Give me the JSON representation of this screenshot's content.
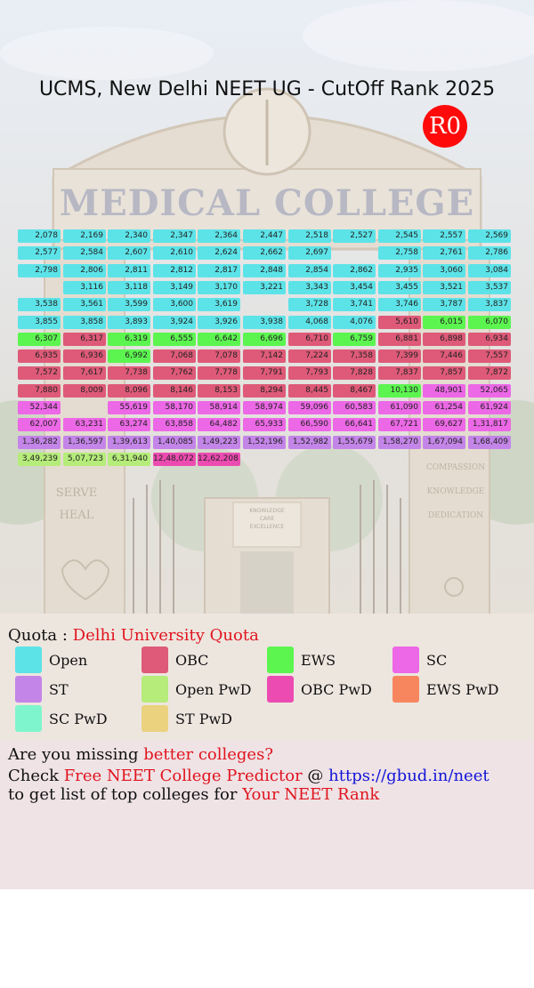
{
  "title": "UCMS, New Delhi NEET UG - CutOff Rank 2025",
  "round_badge": "R0",
  "background": {
    "sign_text": "MEDICAL COLLEGE",
    "pillar_left": [
      "SERVE",
      "HEAL"
    ],
    "pillar_right": [
      "COMPASSION",
      "KNOWLEDGE",
      "DEDICATION"
    ],
    "center_sign": [
      "KNOWLEDGE",
      "CARE",
      "EXCELLENCE"
    ]
  },
  "colors": {
    "Open": "#5ce3e8",
    "OBC": "#de5a78",
    "EWS": "#5cf550",
    "SC": "#ec68e6",
    "ST": "#c485e8",
    "Open PwD": "#b5ec7a",
    "OBC PwD": "#ec4cb1",
    "EWS PwD": "#f7865e",
    "SC PwD": "#7ff5cd",
    "ST PwD": "#ead27f"
  },
  "grid": [
    [
      [
        "2,078",
        "Open"
      ],
      [
        "2,169",
        "Open"
      ],
      [
        "2,340",
        "Open"
      ],
      [
        "2,347",
        "Open"
      ],
      [
        "2,364",
        "Open"
      ],
      [
        "2,447",
        "Open"
      ],
      [
        "2,518",
        "Open"
      ],
      [
        "2,527",
        "Open"
      ],
      [
        "2,545",
        "Open"
      ],
      [
        "2,557",
        "Open"
      ],
      [
        "2,569",
        "Open"
      ]
    ],
    [
      [
        "2,577",
        "Open"
      ],
      [
        "2,584",
        "Open"
      ],
      [
        "2,607",
        "Open"
      ],
      [
        "2,610",
        "Open"
      ],
      [
        "2,624",
        "Open"
      ],
      [
        "2,662",
        "Open"
      ],
      [
        "2,697",
        "Open"
      ],
      null,
      [
        "2,758",
        "Open"
      ],
      [
        "2,761",
        "Open"
      ],
      [
        "2,786",
        "Open"
      ]
    ],
    [
      [
        "2,798",
        "Open"
      ],
      [
        "2,806",
        "Open"
      ],
      [
        "2,811",
        "Open"
      ],
      [
        "2,812",
        "Open"
      ],
      [
        "2,817",
        "Open"
      ],
      [
        "2,848",
        "Open"
      ],
      [
        "2,854",
        "Open"
      ],
      [
        "2,862",
        "Open"
      ],
      [
        "2,935",
        "Open"
      ],
      [
        "3,060",
        "Open"
      ],
      [
        "3,084",
        "Open"
      ]
    ],
    [
      null,
      [
        "3,116",
        "Open"
      ],
      [
        "3,118",
        "Open"
      ],
      [
        "3,149",
        "Open"
      ],
      [
        "3,170",
        "Open"
      ],
      [
        "3,221",
        "Open"
      ],
      [
        "3,343",
        "Open"
      ],
      [
        "3,454",
        "Open"
      ],
      [
        "3,455",
        "Open"
      ],
      [
        "3,521",
        "Open"
      ],
      [
        "3,537",
        "Open"
      ]
    ],
    [
      [
        "3,538",
        "Open"
      ],
      [
        "3,561",
        "Open"
      ],
      [
        "3,599",
        "Open"
      ],
      [
        "3,600",
        "Open"
      ],
      [
        "3,619",
        "Open"
      ],
      null,
      [
        "3,728",
        "Open"
      ],
      [
        "3,741",
        "Open"
      ],
      [
        "3,746",
        "Open"
      ],
      [
        "3,787",
        "Open"
      ],
      [
        "3,837",
        "Open"
      ]
    ],
    [
      [
        "3,855",
        "Open"
      ],
      [
        "3,858",
        "Open"
      ],
      [
        "3,893",
        "Open"
      ],
      [
        "3,924",
        "Open"
      ],
      [
        "3,926",
        "Open"
      ],
      [
        "3,938",
        "Open"
      ],
      [
        "4,068",
        "Open"
      ],
      [
        "4,076",
        "Open"
      ],
      [
        "5,610",
        "OBC"
      ],
      [
        "6,015",
        "EWS"
      ],
      [
        "6,070",
        "EWS"
      ]
    ],
    [
      [
        "6,307",
        "EWS"
      ],
      [
        "6,317",
        "OBC"
      ],
      [
        "6,319",
        "EWS"
      ],
      [
        "6,555",
        "EWS"
      ],
      [
        "6,642",
        "EWS"
      ],
      [
        "6,696",
        "EWS"
      ],
      [
        "6,710",
        "OBC"
      ],
      [
        "6,759",
        "EWS"
      ],
      [
        "6,881",
        "OBC"
      ],
      [
        "6,898",
        "OBC"
      ],
      [
        "6,934",
        "OBC"
      ]
    ],
    [
      [
        "6,935",
        "OBC"
      ],
      [
        "6,936",
        "OBC"
      ],
      [
        "6,992",
        "EWS"
      ],
      [
        "7,068",
        "OBC"
      ],
      [
        "7,078",
        "OBC"
      ],
      [
        "7,142",
        "OBC"
      ],
      [
        "7,224",
        "OBC"
      ],
      [
        "7,358",
        "OBC"
      ],
      [
        "7,399",
        "OBC"
      ],
      [
        "7,446",
        "OBC"
      ],
      [
        "7,557",
        "OBC"
      ]
    ],
    [
      [
        "7,572",
        "OBC"
      ],
      [
        "7,617",
        "OBC"
      ],
      [
        "7,738",
        "OBC"
      ],
      [
        "7,762",
        "OBC"
      ],
      [
        "7,778",
        "OBC"
      ],
      [
        "7,791",
        "OBC"
      ],
      [
        "7,793",
        "OBC"
      ],
      [
        "7,828",
        "OBC"
      ],
      [
        "7,837",
        "OBC"
      ],
      [
        "7,857",
        "OBC"
      ],
      [
        "7,872",
        "OBC"
      ]
    ],
    [
      [
        "7,880",
        "OBC"
      ],
      [
        "8,009",
        "OBC"
      ],
      [
        "8,096",
        "OBC"
      ],
      [
        "8,146",
        "OBC"
      ],
      [
        "8,153",
        "OBC"
      ],
      [
        "8,294",
        "OBC"
      ],
      [
        "8,445",
        "OBC"
      ],
      [
        "8,467",
        "OBC"
      ],
      [
        "10,130",
        "EWS"
      ],
      [
        "48,901",
        "SC"
      ],
      [
        "52,065",
        "SC"
      ]
    ],
    [
      [
        "52,344",
        "SC"
      ],
      null,
      [
        "55,619",
        "SC"
      ],
      [
        "58,170",
        "SC"
      ],
      [
        "58,914",
        "SC"
      ],
      [
        "58,974",
        "SC"
      ],
      [
        "59,096",
        "SC"
      ],
      [
        "60,583",
        "SC"
      ],
      [
        "61,090",
        "SC"
      ],
      [
        "61,254",
        "SC"
      ],
      [
        "61,924",
        "SC"
      ]
    ],
    [
      [
        "62,007",
        "SC"
      ],
      [
        "63,231",
        "SC"
      ],
      [
        "63,274",
        "SC"
      ],
      [
        "63,858",
        "SC"
      ],
      [
        "64,482",
        "SC"
      ],
      [
        "65,933",
        "SC"
      ],
      [
        "66,590",
        "SC"
      ],
      [
        "66,641",
        "SC"
      ],
      [
        "67,721",
        "SC"
      ],
      [
        "69,627",
        "SC"
      ],
      [
        "1,31,817",
        "SC"
      ]
    ],
    [
      [
        "1,36,282",
        "ST"
      ],
      [
        "1,36,597",
        "ST"
      ],
      [
        "1,39,613",
        "ST"
      ],
      [
        "1,40,085",
        "ST"
      ],
      [
        "1,49,223",
        "ST"
      ],
      [
        "1,52,196",
        "ST"
      ],
      [
        "1,52,982",
        "ST"
      ],
      [
        "1,55,679",
        "ST"
      ],
      [
        "1,58,270",
        "ST"
      ],
      [
        "1,67,094",
        "ST"
      ],
      [
        "1,68,409",
        "ST"
      ]
    ],
    [
      [
        "3,49,239",
        "Open PwD"
      ],
      [
        "5,07,723",
        "Open PwD"
      ],
      [
        "6,31,940",
        "Open PwD"
      ],
      [
        "12,48,072",
        "OBC PwD"
      ],
      [
        "12,62,208",
        "OBC PwD"
      ]
    ]
  ],
  "quota_label": "Quota : ",
  "quota_value": "Delhi University Quota",
  "legend": [
    "Open",
    "OBC",
    "EWS",
    "SC",
    "ST",
    "Open PwD",
    "OBC PwD",
    "EWS PwD",
    "SC PwD",
    "ST PwD"
  ],
  "footer": {
    "l1_a": "Are you missing ",
    "l1_b": "better colleges?",
    "l2_a": "Check ",
    "l2_b": "Free NEET College Predictor",
    "l2_c": " @ ",
    "l2_d": "https://gbud.in/neet",
    "l3_a": "to get list of top colleges for ",
    "l3_b": "Your NEET Rank"
  }
}
